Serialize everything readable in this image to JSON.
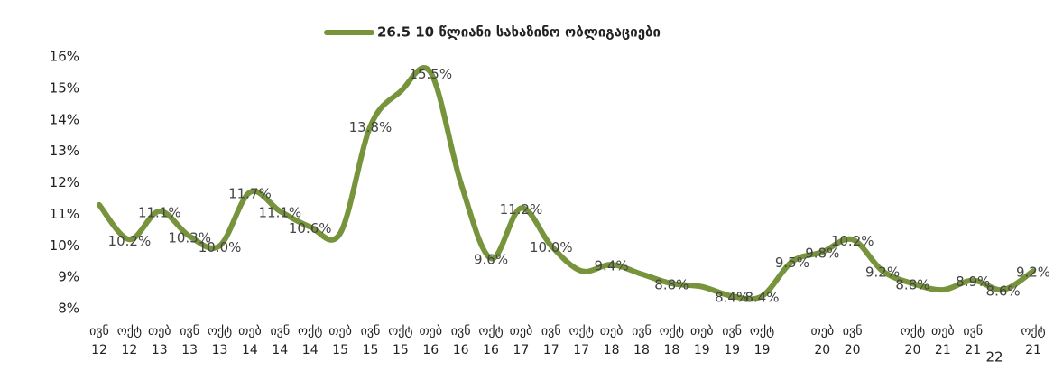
{
  "chart_data": {
    "type": "line",
    "page_number": "22",
    "categories": [
      {
        "month": "ივნ",
        "year": "12"
      },
      {
        "month": "ოქტ",
        "year": "12"
      },
      {
        "month": "თებ",
        "year": "13"
      },
      {
        "month": "ივნ",
        "year": "13"
      },
      {
        "month": "ოქტ",
        "year": "13"
      },
      {
        "month": "თებ",
        "year": "14"
      },
      {
        "month": "ივნ",
        "year": "14"
      },
      {
        "month": "ოქტ",
        "year": "14"
      },
      {
        "month": "თებ",
        "year": "15"
      },
      {
        "month": "ივნ",
        "year": "15"
      },
      {
        "month": "ოქტ",
        "year": "15"
      },
      {
        "month": "თებ",
        "year": "16"
      },
      {
        "month": "ივნ",
        "year": "16"
      },
      {
        "month": "ოქტ",
        "year": "16"
      },
      {
        "month": "თებ",
        "year": "17"
      },
      {
        "month": "ივნ",
        "year": "17"
      },
      {
        "month": "ოქტ",
        "year": "17"
      },
      {
        "month": "თებ",
        "year": "18"
      },
      {
        "month": "ივნ",
        "year": "18"
      },
      {
        "month": "ოქტ",
        "year": "18"
      },
      {
        "month": "თებ",
        "year": "19"
      },
      {
        "month": "ივნ",
        "year": "19"
      },
      {
        "month": "ოქტ",
        "year": "19"
      },
      null,
      {
        "month": "თებ",
        "year": "20"
      },
      {
        "month": "ივნ",
        "year": "20"
      },
      null,
      {
        "month": "ოქტ",
        "year": "20"
      },
      {
        "month": "თებ",
        "year": "21"
      },
      {
        "month": "ივნ",
        "year": "21"
      },
      null,
      {
        "month": "ოქტ",
        "year": "21"
      }
    ],
    "series": [
      {
        "name": "26.5 10 წლიანი სახაზინო ობლიგაციები",
        "color": "#77933c",
        "values": [
          11.3,
          10.2,
          11.1,
          10.3,
          10.0,
          11.7,
          11.1,
          10.6,
          10.4,
          13.8,
          14.9,
          15.5,
          12.0,
          9.6,
          11.2,
          10.0,
          9.2,
          9.4,
          9.1,
          8.8,
          8.7,
          8.4,
          8.4,
          9.5,
          9.8,
          10.2,
          9.2,
          8.8,
          8.6,
          8.9,
          8.6,
          9.2
        ],
        "value_labels": [
          null,
          "10.2%",
          "11.1%",
          "10.3%",
          "10.0%",
          "11.7%",
          "11.1%",
          "10.6%",
          null,
          "13.8%",
          null,
          "15.5%",
          null,
          "9.6%",
          "11.2%",
          "10.0%",
          null,
          "9.4%",
          null,
          "8.8%",
          null,
          "8.4%",
          "8.4%",
          "9.5%",
          "9.8%",
          "10.2%",
          "9.2%",
          "8.8%",
          null,
          "8.9%",
          "8.6%",
          "9.2%"
        ]
      }
    ],
    "ylim": [
      8,
      16
    ],
    "yticks": [
      {
        "value": 8,
        "label": "8%"
      },
      {
        "value": 9,
        "label": "9%"
      },
      {
        "value": 10,
        "label": "10%"
      },
      {
        "value": 11,
        "label": "11%"
      },
      {
        "value": 12,
        "label": "12%"
      },
      {
        "value": 13,
        "label": "13%"
      },
      {
        "value": 14,
        "label": "14%"
      },
      {
        "value": 15,
        "label": "15%"
      },
      {
        "value": 16,
        "label": "16%"
      }
    ],
    "grid": false,
    "legend": "top"
  }
}
